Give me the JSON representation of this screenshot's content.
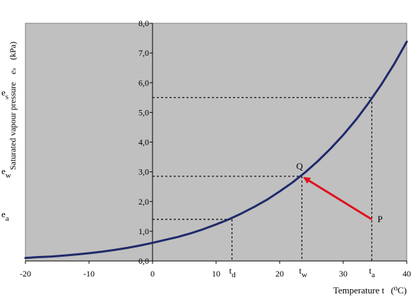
{
  "chart_data": {
    "type": "line",
    "xlabel": "Temperature t",
    "xlabel_unit": "(⁰C)",
    "ylabel": "Saturated vapour pressure",
    "ylabel_symbol": "eₛ",
    "ylabel_unit": "(kPa)",
    "xlim": [
      -20,
      40
    ],
    "ylim": [
      0,
      8
    ],
    "x_ticks": [
      "-20",
      "-10",
      "0",
      "10",
      "20",
      "30",
      "40"
    ],
    "y_ticks": [
      "0,0",
      "1,0",
      "2,0",
      "3,0",
      "4,0",
      "5,0",
      "6,0",
      "7,0",
      "8,0"
    ],
    "grid": false,
    "series": [
      {
        "x": [
          -20,
          -18,
          -16,
          -14,
          -12,
          -10,
          -8,
          -6,
          -4,
          -2,
          0,
          2,
          4,
          6,
          8,
          10,
          12,
          14,
          16,
          18,
          20,
          22,
          24,
          26,
          28,
          30,
          32,
          34,
          36,
          38,
          40
        ],
        "y": [
          0.1,
          0.13,
          0.15,
          0.18,
          0.22,
          0.26,
          0.31,
          0.37,
          0.44,
          0.52,
          0.61,
          0.71,
          0.81,
          0.93,
          1.07,
          1.23,
          1.4,
          1.6,
          1.82,
          2.06,
          2.34,
          2.64,
          2.98,
          3.36,
          3.78,
          4.24,
          4.75,
          5.32,
          5.94,
          6.62,
          7.38
        ],
        "color": "#1f2a6b"
      }
    ],
    "annotations": {
      "points": [
        {
          "label": "P",
          "x": 34.5,
          "y": 1.4
        },
        {
          "label": "Q",
          "x": 23.5,
          "y": 2.85
        }
      ],
      "arrow": {
        "from": "P",
        "to": "Q",
        "color": "#e0101e"
      },
      "dashed_guides": [
        {
          "x": 12.5,
          "y": 1.4
        },
        {
          "x": 23.5,
          "y": 2.85
        },
        {
          "x": 34.5,
          "y": 5.5
        }
      ],
      "y_markers": [
        {
          "base": "e",
          "sub": "s",
          "y": 5.5
        },
        {
          "base": "e",
          "sub": "w",
          "y": 2.85
        },
        {
          "base": "e",
          "sub": "a",
          "y": 1.4
        }
      ],
      "x_markers": [
        {
          "base": "t",
          "sub": "d",
          "x": 12.5
        },
        {
          "base": "t",
          "sub": "w",
          "x": 23.5
        },
        {
          "base": "t",
          "sub": "a",
          "x": 34.5
        }
      ]
    },
    "colors": {
      "plot_background": "#c0c0c0",
      "curve": "#1f2a6b",
      "arrow": "#e0101e"
    }
  }
}
